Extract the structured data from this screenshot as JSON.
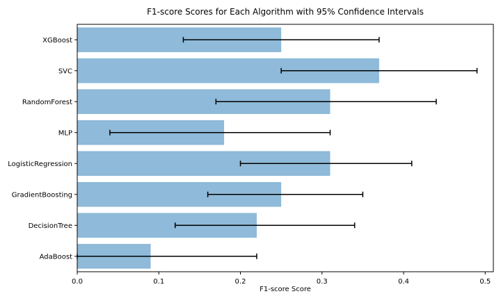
{
  "chart_data": {
    "type": "bar",
    "orientation": "horizontal",
    "title": "F1-score Scores for Each Algorithm with 95% Confidence Intervals",
    "xlabel": "F1-score Score",
    "ylabel": "",
    "xlim": [
      0,
      0.51
    ],
    "xticks": [
      "0.0",
      "0.1",
      "0.2",
      "0.3",
      "0.4",
      "0.5"
    ],
    "grid": false,
    "bar_color": "#8fbad9",
    "error_color": "#000000",
    "categories": [
      "XGBoost",
      "SVC",
      "RandomForest",
      "MLP",
      "LogisticRegression",
      "GradientBoosting",
      "DecisionTree",
      "AdaBoost"
    ],
    "values": [
      0.25,
      0.37,
      0.31,
      0.18,
      0.31,
      0.25,
      0.22,
      0.09
    ],
    "ci_low": [
      0.13,
      0.25,
      0.17,
      0.04,
      0.2,
      0.16,
      0.12,
      0.0
    ],
    "ci_high": [
      0.37,
      0.49,
      0.44,
      0.31,
      0.41,
      0.35,
      0.34,
      0.22
    ]
  }
}
